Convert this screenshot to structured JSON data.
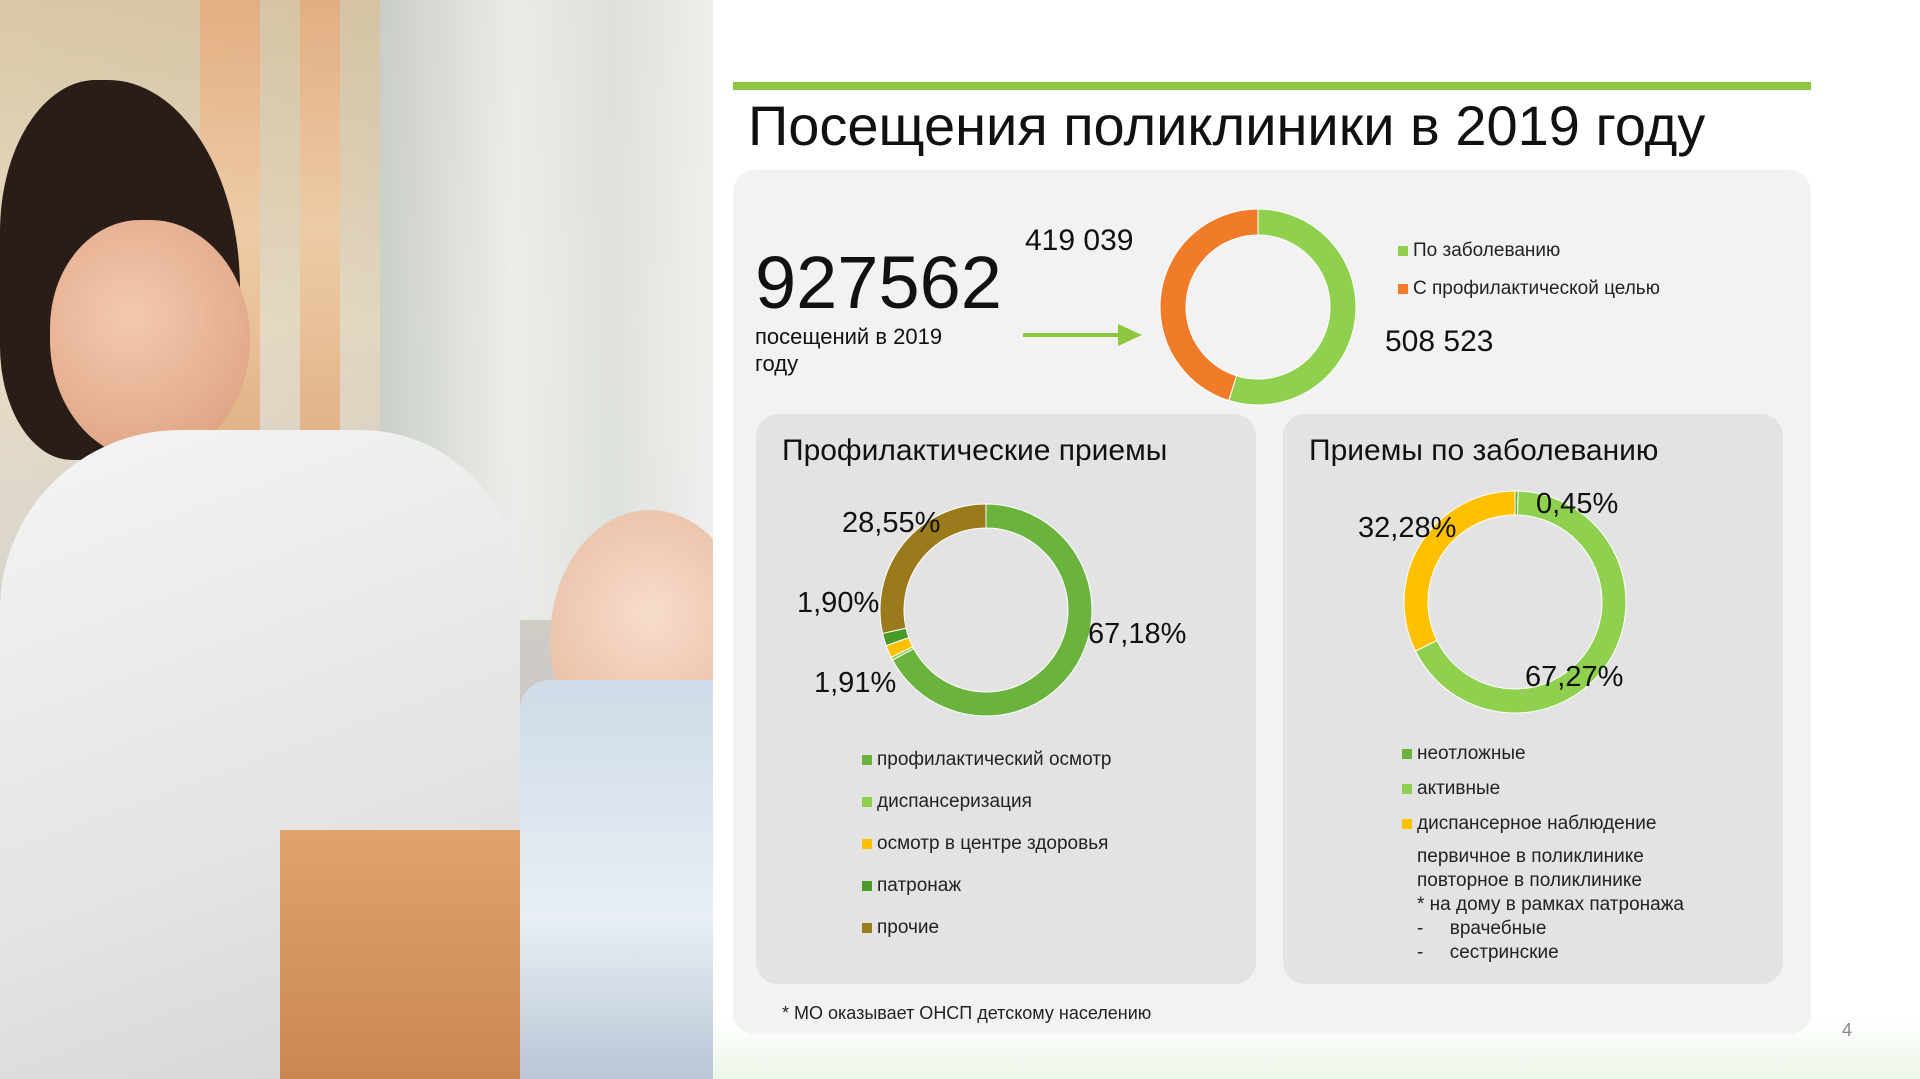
{
  "title": "Посещения поликлиники в 2019 году",
  "total": {
    "value": "927562",
    "caption": "посещений в 2019 году"
  },
  "footnote": "* МО оказывает ОНСП детскому населению",
  "page_number": "4",
  "colors": {
    "accent": "#8dc63f",
    "orange": "#f07c2a",
    "green_light": "#8fd14f",
    "green_mid": "#6ab43e",
    "green_dark": "#4a9a2a",
    "yellow": "#ffc000",
    "olive": "#9a7a1a"
  },
  "chart_data": [
    {
      "type": "pie",
      "name": "visits",
      "labels": [
        "По заболеванию",
        "С профилактической целью"
      ],
      "values": [
        508523,
        419039
      ],
      "value_labels": [
        "508 523",
        "419 039"
      ],
      "colors": [
        "#8fd14f",
        "#f07c2a"
      ],
      "legend": "right",
      "legend_entries": [
        "По заболеванию",
        "С профилактической целью"
      ]
    },
    {
      "type": "pie",
      "name": "preventive",
      "title": "Профилактические приемы",
      "labels": [
        "профилактический осмотр",
        "диспансеризация",
        "осмотр в центре здоровья",
        "патронаж",
        "прочие"
      ],
      "values": [
        67.18,
        0.46,
        1.91,
        1.9,
        28.55
      ],
      "value_labels": [
        "67,18%",
        "",
        "1,91%",
        "1,90%",
        "28,55%"
      ],
      "colors": [
        "#6ab43e",
        "#8fd14f",
        "#ffc000",
        "#4a9a2a",
        "#9a7a1a"
      ],
      "legend": "bottom",
      "legend_entries": [
        "профилактический осмотр",
        "диспансеризация",
        "осмотр в центре здоровья",
        "патронаж",
        "прочие"
      ]
    },
    {
      "type": "pie",
      "name": "disease",
      "title": "Приемы по заболеванию",
      "labels": [
        "неотложные",
        "активные",
        "диспансерное наблюдение"
      ],
      "values": [
        0.45,
        67.27,
        32.28
      ],
      "value_labels": [
        "0,45%",
        "67,27%",
        "32,28%"
      ],
      "colors": [
        "#6ab43e",
        "#8fd14f",
        "#ffc000"
      ],
      "legend": "bottom",
      "legend_entries": [
        "неотложные",
        "активные",
        "диспансерное наблюдение"
      ],
      "notes": [
        "первичное в поликлинике",
        "повторное в поликлинике",
        "* на дому в рамках патронажа",
        "-     врачебные",
        "-     сестринские"
      ]
    }
  ]
}
